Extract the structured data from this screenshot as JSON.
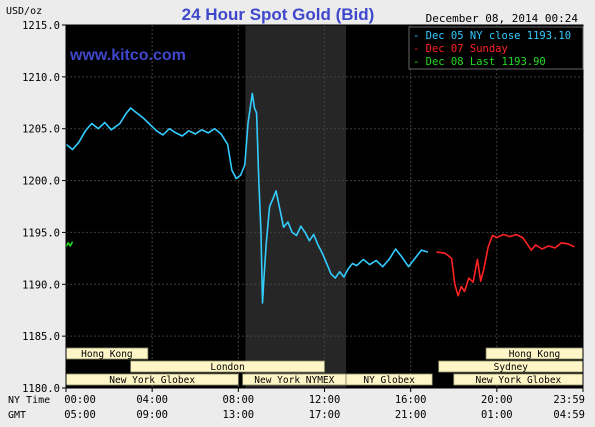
{
  "chart_data": {
    "type": "line",
    "title": "24 Hour Spot Gold (Bid)",
    "date_text": "December 08, 2014 00:24",
    "watermark": "www.kitco.com",
    "ylabel": "USD/oz",
    "ylim": [
      1180,
      1215
    ],
    "ytick_values": [
      1180,
      1185,
      1190,
      1195,
      1200,
      1205,
      1210,
      1215
    ],
    "ytick_labels": [
      "1180.0",
      "1185.0",
      "1190.0",
      "1195.0",
      "1200.0",
      "1205.0",
      "1210.0",
      "1215.0"
    ],
    "xlim_hours_ny": [
      0,
      24
    ],
    "x_row_labels": [
      "NY Time",
      "GMT"
    ],
    "x_ticks": [
      {
        "hour": 0,
        "ny": "00:00",
        "gmt": "05:00"
      },
      {
        "hour": 4,
        "ny": "04:00",
        "gmt": "09:00"
      },
      {
        "hour": 8,
        "ny": "08:00",
        "gmt": "13:00"
      },
      {
        "hour": 12,
        "ny": "12:00",
        "gmt": "17:00"
      },
      {
        "hour": 16,
        "ny": "16:00",
        "gmt": "21:00"
      },
      {
        "hour": 20,
        "ny": "20:00",
        "gmt": "01:00"
      },
      {
        "hour": 24,
        "ny": "23:59",
        "gmt": "04:59"
      }
    ],
    "grid": true,
    "legend_position": "top-right",
    "shaded_region_hours": [
      8.33,
      13.0
    ],
    "colors": {
      "background": "#000000",
      "grid": "#404040",
      "shade": "#262626",
      "title": "#3f48cc",
      "axis_text": "#000000"
    },
    "legend": [
      {
        "label": "Dec 05 NY close 1193.10",
        "color": "#33ccff"
      },
      {
        "label": "Dec 07 Sunday",
        "color": "#ff2222"
      },
      {
        "label": "Dec 08 Last 1193.90",
        "color": "#22dd22"
      }
    ],
    "series": [
      {
        "name": "Dec 05 NY close 1193.10",
        "color": "#33ccff",
        "points": [
          [
            0,
            1203.5
          ],
          [
            0.3,
            1203.0
          ],
          [
            0.6,
            1203.7
          ],
          [
            0.9,
            1204.8
          ],
          [
            1.2,
            1205.5
          ],
          [
            1.5,
            1205.0
          ],
          [
            1.8,
            1205.6
          ],
          [
            2.1,
            1204.9
          ],
          [
            2.5,
            1205.5
          ],
          [
            2.8,
            1206.5
          ],
          [
            3.0,
            1207.0
          ],
          [
            3.3,
            1206.5
          ],
          [
            3.6,
            1206.0
          ],
          [
            3.9,
            1205.4
          ],
          [
            4.2,
            1204.8
          ],
          [
            4.5,
            1204.4
          ],
          [
            4.8,
            1205.0
          ],
          [
            5.1,
            1204.6
          ],
          [
            5.4,
            1204.3
          ],
          [
            5.7,
            1204.8
          ],
          [
            6.0,
            1204.5
          ],
          [
            6.3,
            1204.9
          ],
          [
            6.6,
            1204.6
          ],
          [
            6.9,
            1205.0
          ],
          [
            7.2,
            1204.5
          ],
          [
            7.5,
            1203.5
          ],
          [
            7.7,
            1201.0
          ],
          [
            7.9,
            1200.2
          ],
          [
            8.1,
            1200.5
          ],
          [
            8.3,
            1201.5
          ],
          [
            8.45,
            1205.5
          ],
          [
            8.55,
            1207.0
          ],
          [
            8.65,
            1208.4
          ],
          [
            8.75,
            1207.0
          ],
          [
            8.85,
            1206.5
          ],
          [
            8.95,
            1200.0
          ],
          [
            9.05,
            1195.0
          ],
          [
            9.12,
            1188.2
          ],
          [
            9.2,
            1191.0
          ],
          [
            9.3,
            1194.0
          ],
          [
            9.45,
            1197.5
          ],
          [
            9.6,
            1198.2
          ],
          [
            9.75,
            1199.0
          ],
          [
            9.9,
            1197.5
          ],
          [
            10.1,
            1195.5
          ],
          [
            10.3,
            1196.0
          ],
          [
            10.5,
            1195.0
          ],
          [
            10.7,
            1194.7
          ],
          [
            10.9,
            1195.6
          ],
          [
            11.1,
            1195.0
          ],
          [
            11.3,
            1194.2
          ],
          [
            11.5,
            1194.8
          ],
          [
            11.7,
            1193.8
          ],
          [
            11.9,
            1193.0
          ],
          [
            12.1,
            1192.0
          ],
          [
            12.3,
            1191.0
          ],
          [
            12.5,
            1190.6
          ],
          [
            12.7,
            1191.2
          ],
          [
            12.9,
            1190.7
          ],
          [
            13.1,
            1191.5
          ],
          [
            13.3,
            1192.0
          ],
          [
            13.5,
            1191.8
          ],
          [
            13.8,
            1192.4
          ],
          [
            14.1,
            1191.9
          ],
          [
            14.4,
            1192.3
          ],
          [
            14.7,
            1191.7
          ],
          [
            15.0,
            1192.4
          ],
          [
            15.3,
            1193.4
          ],
          [
            15.6,
            1192.6
          ],
          [
            15.9,
            1191.7
          ],
          [
            16.2,
            1192.5
          ],
          [
            16.5,
            1193.3
          ],
          [
            16.8,
            1193.1
          ]
        ]
      },
      {
        "name": "Dec 07 Sunday",
        "color": "#ff2222",
        "points": [
          [
            17.2,
            1193.1
          ],
          [
            17.6,
            1193.0
          ],
          [
            17.9,
            1192.5
          ],
          [
            18.05,
            1190.0
          ],
          [
            18.2,
            1188.9
          ],
          [
            18.35,
            1189.8
          ],
          [
            18.5,
            1189.3
          ],
          [
            18.7,
            1190.6
          ],
          [
            18.9,
            1190.2
          ],
          [
            19.1,
            1192.4
          ],
          [
            19.25,
            1190.3
          ],
          [
            19.4,
            1191.5
          ],
          [
            19.6,
            1193.6
          ],
          [
            19.8,
            1194.7
          ],
          [
            20.0,
            1194.5
          ],
          [
            20.3,
            1194.8
          ],
          [
            20.6,
            1194.6
          ],
          [
            20.9,
            1194.8
          ],
          [
            21.2,
            1194.5
          ],
          [
            21.4,
            1193.9
          ],
          [
            21.6,
            1193.3
          ],
          [
            21.8,
            1193.8
          ],
          [
            22.1,
            1193.4
          ],
          [
            22.4,
            1193.7
          ],
          [
            22.7,
            1193.5
          ],
          [
            23.0,
            1194.0
          ],
          [
            23.3,
            1193.9
          ],
          [
            23.6,
            1193.6
          ]
        ]
      },
      {
        "name": "Dec 08 Last 1193.90",
        "color": "#22dd22",
        "points": [
          [
            0,
            1193.6
          ],
          [
            0.1,
            1194.0
          ],
          [
            0.2,
            1193.7
          ],
          [
            0.3,
            1194.1
          ]
        ]
      }
    ],
    "market_sessions": [
      {
        "label": "Hong Kong",
        "row": 0,
        "start": 0,
        "end": 3.8
      },
      {
        "label": "London",
        "row": 1,
        "start": 3.0,
        "end": 12.0
      },
      {
        "label": "New York Globex",
        "row": 2,
        "start": 0,
        "end": 8.0
      },
      {
        "label": "New York NYMEX",
        "row": 2,
        "start": 8.2,
        "end": 13.0
      },
      {
        "label": "NY Globex",
        "row": 2,
        "start": 13.0,
        "end": 17.0
      },
      {
        "label": "Hong Kong",
        "row": 0,
        "start": 19.5,
        "end": 24.0
      },
      {
        "label": "Sydney",
        "row": 1,
        "start": 17.3,
        "end": 24.0
      },
      {
        "label": "New York Globex",
        "row": 2,
        "start": 18.0,
        "end": 24.0
      }
    ]
  }
}
